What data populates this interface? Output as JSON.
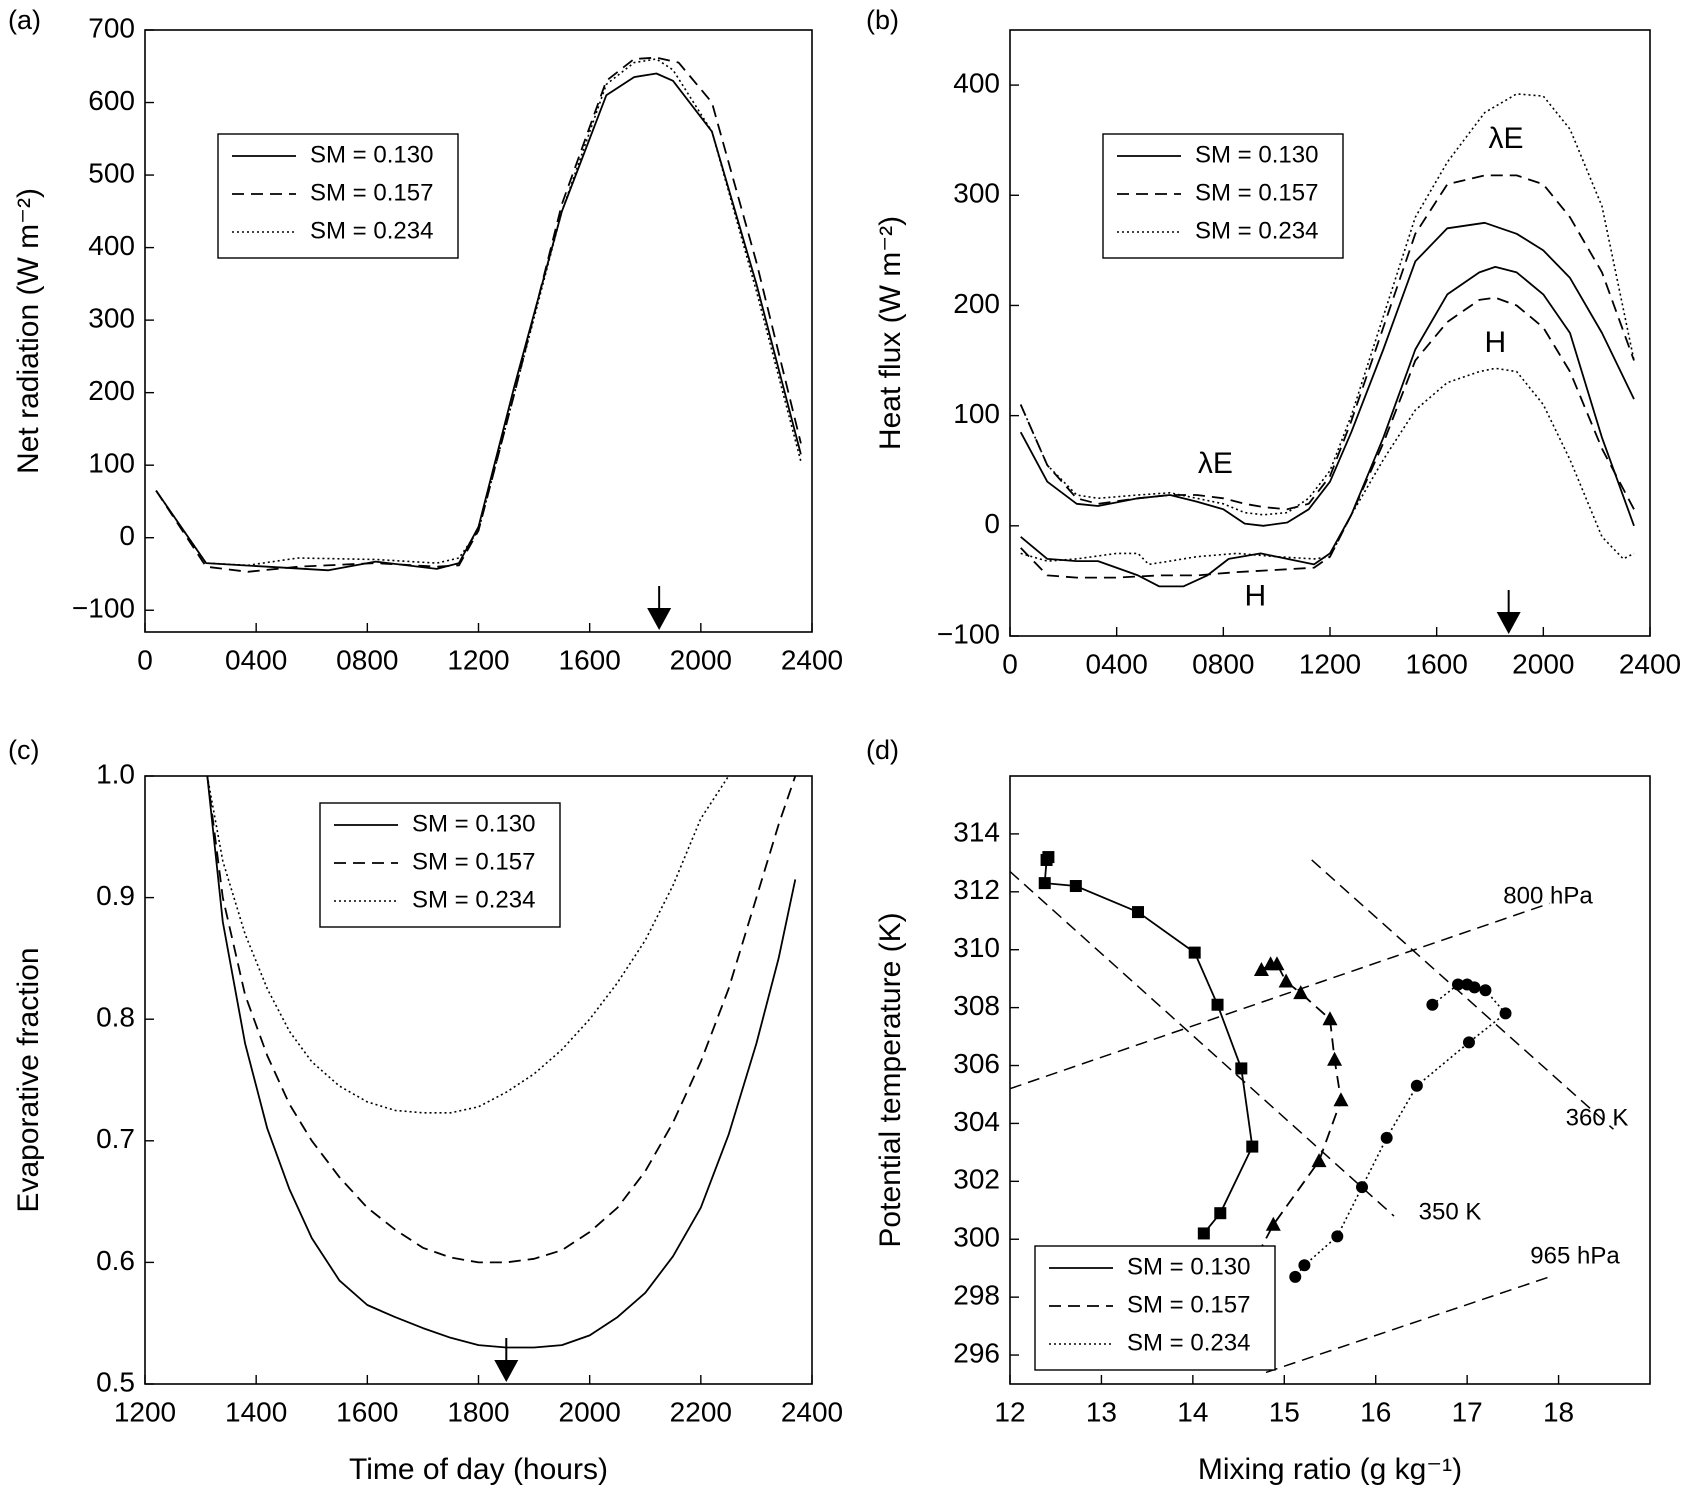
{
  "figure": {
    "units": {
      "wm2": "(W m⁻²)",
      "gkg": "(g kg⁻¹)"
    }
  },
  "chart_data": [
    {
      "type": "line",
      "panel_label": "(a)",
      "ylabel": "Net radiation",
      "ylabel_unit": "(W m⁻²)",
      "xlabel": "",
      "xlim": [
        0,
        2400
      ],
      "ylim": [
        -130,
        700
      ],
      "xticks": [
        0,
        400,
        800,
        1200,
        1600,
        2000,
        2400
      ],
      "xtick_labels": [
        "0",
        "0400",
        "0800",
        "1200",
        "1600",
        "2000",
        "2400"
      ],
      "yticks": [
        -100,
        0,
        100,
        200,
        300,
        400,
        500,
        600,
        700
      ],
      "ytick_labels": [
        "−100",
        "0",
        "100",
        "200",
        "300",
        "400",
        "500",
        "600",
        "700"
      ],
      "legend": {
        "position": "upper-left"
      },
      "arrow_x": 1850,
      "series": [
        {
          "name": "SM = 0.130",
          "style": "solid",
          "x": [
            40,
            220,
            440,
            660,
            830,
            1050,
            1130,
            1200,
            1330,
            1500,
            1660,
            1760,
            1840,
            1900,
            2040,
            2200,
            2360
          ],
          "y": [
            65,
            -35,
            -40,
            -45,
            -33,
            -43,
            -35,
            15,
            210,
            450,
            610,
            635,
            640,
            630,
            560,
            350,
            115
          ]
        },
        {
          "name": "SM = 0.157",
          "style": "dashed",
          "x": [
            40,
            220,
            370,
            550,
            830,
            1050,
            1130,
            1200,
            1330,
            1500,
            1660,
            1760,
            1840,
            1920,
            2040,
            2200,
            2360
          ],
          "y": [
            65,
            -40,
            -47,
            -40,
            -35,
            -40,
            -38,
            10,
            200,
            460,
            630,
            660,
            662,
            655,
            600,
            380,
            130
          ]
        },
        {
          "name": "SM = 0.234",
          "style": "dotted",
          "x": [
            40,
            220,
            370,
            550,
            830,
            1050,
            1130,
            1200,
            1330,
            1500,
            1660,
            1760,
            1840,
            1900,
            2040,
            2200,
            2360
          ],
          "y": [
            65,
            -35,
            -38,
            -28,
            -30,
            -35,
            -28,
            10,
            200,
            450,
            625,
            655,
            660,
            645,
            560,
            340,
            105
          ]
        }
      ]
    },
    {
      "type": "line",
      "panel_label": "(b)",
      "ylabel": "Heat flux",
      "ylabel_unit": "(W m⁻²)",
      "xlabel": "",
      "xlim": [
        0,
        2400
      ],
      "ylim": [
        -100,
        450
      ],
      "xticks": [
        0,
        400,
        800,
        1200,
        1600,
        2000,
        2400
      ],
      "xtick_labels": [
        "0",
        "0400",
        "0800",
        "1200",
        "1600",
        "2000",
        "2400"
      ],
      "yticks": [
        -100,
        0,
        100,
        200,
        300,
        400
      ],
      "ytick_labels": [
        "−100",
        "0",
        "100",
        "200",
        "300",
        "400"
      ],
      "legend": {
        "position": "upper-left"
      },
      "arrow_x": 1870,
      "annotations": [
        {
          "text": "λE",
          "x": 770,
          "y": 55
        },
        {
          "text": "λE",
          "x": 1860,
          "y": 350
        },
        {
          "text": "H",
          "x": 920,
          "y": -65
        },
        {
          "text": "H",
          "x": 1820,
          "y": 165
        }
      ],
      "series": [
        {
          "name": "SM = 0.130",
          "quantity": "λE",
          "style": "solid",
          "x": [
            40,
            140,
            250,
            330,
            480,
            600,
            700,
            800,
            880,
            950,
            1040,
            1120,
            1200,
            1280,
            1400,
            1520,
            1640,
            1780,
            1900,
            2000,
            2100,
            2220,
            2340
          ],
          "y": [
            85,
            40,
            20,
            18,
            25,
            28,
            22,
            15,
            2,
            0,
            3,
            15,
            40,
            85,
            160,
            240,
            270,
            275,
            265,
            250,
            225,
            175,
            115
          ]
        },
        {
          "name": "SM = 0.157",
          "quantity": "λE",
          "style": "dashed",
          "x": [
            40,
            140,
            250,
            330,
            480,
            600,
            700,
            800,
            880,
            950,
            1040,
            1120,
            1200,
            1280,
            1400,
            1520,
            1640,
            1780,
            1900,
            2000,
            2100,
            2220,
            2340
          ],
          "y": [
            110,
            55,
            25,
            20,
            25,
            28,
            28,
            25,
            20,
            17,
            15,
            20,
            45,
            95,
            180,
            265,
            310,
            318,
            318,
            310,
            280,
            230,
            150
          ]
        },
        {
          "name": "SM = 0.234",
          "quantity": "λE",
          "style": "dotted",
          "x": [
            40,
            140,
            250,
            330,
            480,
            600,
            700,
            800,
            880,
            950,
            1040,
            1120,
            1200,
            1280,
            1400,
            1520,
            1640,
            1780,
            1900,
            2000,
            2100,
            2220,
            2340
          ],
          "y": [
            110,
            55,
            28,
            25,
            28,
            30,
            25,
            20,
            12,
            10,
            12,
            25,
            50,
            100,
            190,
            280,
            330,
            375,
            392,
            390,
            360,
            290,
            150
          ]
        },
        {
          "name": "SM = 0.130",
          "quantity": "H",
          "style": "solid",
          "x": [
            40,
            140,
            250,
            330,
            480,
            560,
            650,
            740,
            820,
            940,
            1040,
            1140,
            1200,
            1280,
            1400,
            1520,
            1640,
            1760,
            1820,
            1900,
            2000,
            2100,
            2220,
            2340
          ],
          "y": [
            -10,
            -30,
            -32,
            -32,
            -45,
            -55,
            -55,
            -45,
            -30,
            -25,
            -30,
            -35,
            -25,
            10,
            80,
            160,
            210,
            230,
            235,
            230,
            210,
            175,
            80,
            0
          ]
        },
        {
          "name": "SM = 0.157",
          "quantity": "H",
          "style": "dashed",
          "x": [
            40,
            140,
            250,
            400,
            560,
            700,
            850,
            1000,
            1140,
            1200,
            1280,
            1400,
            1520,
            1640,
            1760,
            1820,
            1900,
            2000,
            2100,
            2220,
            2340
          ],
          "y": [
            -20,
            -45,
            -47,
            -47,
            -45,
            -45,
            -42,
            -40,
            -38,
            -28,
            10,
            75,
            150,
            185,
            205,
            207,
            200,
            180,
            140,
            70,
            15
          ]
        },
        {
          "name": "SM = 0.234",
          "quantity": "H",
          "style": "dotted",
          "x": [
            40,
            140,
            250,
            400,
            480,
            520,
            600,
            700,
            850,
            1000,
            1140,
            1200,
            1280,
            1400,
            1520,
            1640,
            1760,
            1820,
            1900,
            2000,
            2100,
            2220,
            2300,
            2340
          ],
          "y": [
            -25,
            -32,
            -30,
            -25,
            -25,
            -35,
            -32,
            -28,
            -25,
            -28,
            -30,
            -28,
            10,
            60,
            105,
            130,
            140,
            143,
            140,
            110,
            60,
            -10,
            -30,
            -25
          ]
        }
      ]
    },
    {
      "type": "line",
      "panel_label": "(c)",
      "ylabel": "Evaporative fraction",
      "xlabel": "Time of day (hours)",
      "xlim": [
        1200,
        2400
      ],
      "ylim": [
        0.5,
        1.0
      ],
      "xticks": [
        1200,
        1400,
        1600,
        1800,
        2000,
        2200,
        2400
      ],
      "xtick_labels": [
        "1200",
        "1400",
        "1600",
        "1800",
        "2000",
        "2200",
        "2400"
      ],
      "yticks": [
        0.5,
        0.6,
        0.7,
        0.8,
        0.9,
        1.0
      ],
      "ytick_labels": [
        "0.5",
        "0.6",
        "0.7",
        "0.8",
        "0.9",
        "1.0"
      ],
      "legend": {
        "position": "upper-center"
      },
      "arrow_x": 1850,
      "series": [
        {
          "name": "SM = 0.130",
          "style": "solid",
          "x": [
            1312,
            1340,
            1380,
            1420,
            1460,
            1500,
            1550,
            1600,
            1650,
            1700,
            1750,
            1800,
            1850,
            1900,
            1950,
            2000,
            2050,
            2100,
            2150,
            2200,
            2250,
            2300,
            2340,
            2370
          ],
          "y": [
            1.0,
            0.88,
            0.78,
            0.71,
            0.66,
            0.62,
            0.585,
            0.565,
            0.555,
            0.546,
            0.538,
            0.532,
            0.53,
            0.53,
            0.532,
            0.54,
            0.555,
            0.575,
            0.605,
            0.645,
            0.705,
            0.78,
            0.85,
            0.915
          ]
        },
        {
          "name": "SM = 0.157",
          "style": "dashed",
          "x": [
            1312,
            1340,
            1380,
            1420,
            1460,
            1500,
            1550,
            1600,
            1650,
            1700,
            1750,
            1800,
            1850,
            1900,
            1950,
            2000,
            2050,
            2100,
            2150,
            2200,
            2250,
            2300,
            2340,
            2370
          ],
          "y": [
            1.0,
            0.9,
            0.82,
            0.77,
            0.73,
            0.7,
            0.67,
            0.645,
            0.627,
            0.612,
            0.604,
            0.6,
            0.6,
            0.603,
            0.61,
            0.625,
            0.645,
            0.675,
            0.715,
            0.765,
            0.825,
            0.9,
            0.96,
            1.0
          ]
        },
        {
          "name": "SM = 0.234",
          "style": "dotted",
          "x": [
            1312,
            1340,
            1380,
            1420,
            1460,
            1500,
            1550,
            1600,
            1650,
            1700,
            1750,
            1800,
            1850,
            1900,
            1950,
            2000,
            2050,
            2100,
            2150,
            2200,
            2250
          ],
          "y": [
            1.0,
            0.93,
            0.87,
            0.825,
            0.79,
            0.765,
            0.745,
            0.732,
            0.725,
            0.723,
            0.723,
            0.728,
            0.74,
            0.755,
            0.775,
            0.8,
            0.83,
            0.865,
            0.91,
            0.965,
            1.0
          ]
        }
      ]
    },
    {
      "type": "line",
      "panel_label": "(d)",
      "ylabel": "Potential temperature (K)",
      "xlabel": "Mixing ratio",
      "xlabel_unit": "(g kg⁻¹)",
      "xlim": [
        12,
        19
      ],
      "ylim": [
        295,
        316
      ],
      "xticks": [
        12,
        13,
        14,
        15,
        16,
        17,
        18
      ],
      "xtick_labels": [
        "12",
        "13",
        "14",
        "15",
        "16",
        "17",
        "18"
      ],
      "yticks": [
        296,
        298,
        300,
        302,
        304,
        306,
        308,
        310,
        312,
        314
      ],
      "ytick_labels": [
        "296",
        "298",
        "300",
        "302",
        "304",
        "306",
        "308",
        "310",
        "312",
        "314"
      ],
      "legend": {
        "position": "lower-left"
      },
      "reference_lines": [
        {
          "label": "800 hPa",
          "x": [
            12.0,
            17.9
          ],
          "y": [
            305.2,
            311.6
          ]
        },
        {
          "label": "965 hPa",
          "x": [
            14.8,
            17.9
          ],
          "y": [
            295.4,
            298.7
          ]
        },
        {
          "label": "350 K",
          "x": [
            12.0,
            16.2
          ],
          "y": [
            312.7,
            300.8
          ]
        },
        {
          "label": "360 K",
          "x": [
            15.3,
            18.6
          ],
          "y": [
            313.1,
            303.8
          ]
        }
      ],
      "series": [
        {
          "name": "SM = 0.130",
          "style": "solid",
          "marker": "square",
          "x": [
            12.42,
            12.4,
            12.38,
            12.72,
            13.4,
            14.02,
            14.27,
            14.53,
            14.65,
            14.3,
            14.12
          ],
          "y": [
            313.2,
            313.1,
            312.3,
            312.2,
            311.3,
            309.9,
            308.1,
            305.9,
            303.2,
            300.9,
            300.2
          ]
        },
        {
          "name": "SM = 0.157",
          "style": "dashed",
          "marker": "triangle",
          "x": [
            14.75,
            14.85,
            14.92,
            15.02,
            15.18,
            15.5,
            15.55,
            15.62,
            15.38,
            14.88,
            14.68
          ],
          "y": [
            309.3,
            309.5,
            309.5,
            308.9,
            308.5,
            307.6,
            306.2,
            304.8,
            302.7,
            300.5,
            299.3
          ]
        },
        {
          "name": "SM = 0.234",
          "style": "dotted",
          "marker": "circle",
          "x": [
            16.62,
            16.9,
            17.0,
            17.08,
            17.2,
            17.42,
            17.02,
            16.45,
            16.12,
            15.85,
            15.58,
            15.22,
            15.12
          ],
          "y": [
            308.1,
            308.8,
            308.8,
            308.7,
            308.6,
            307.8,
            306.8,
            305.3,
            303.5,
            301.8,
            300.1,
            299.1,
            298.7
          ]
        }
      ]
    }
  ]
}
